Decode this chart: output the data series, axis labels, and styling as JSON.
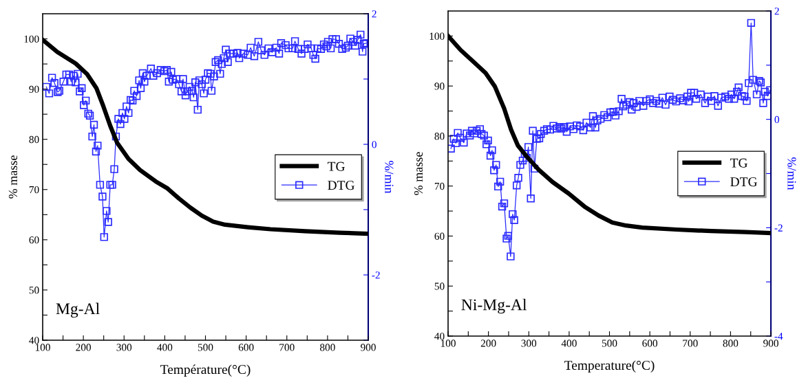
{
  "chart_data": [
    {
      "type": "line",
      "xlabel": "Température(°C)",
      "ylabel": "% masse",
      "y2label": "%/min",
      "annotations": [
        "Mg-Al"
      ],
      "legend": "right",
      "grid": false,
      "xlim": [
        100,
        900
      ],
      "xticks": [
        100,
        {
          "value": 150,
          "label": null
        },
        200,
        {
          "value": 250,
          "label": null
        },
        300,
        {
          "value": 350,
          "label": null
        },
        400,
        {
          "value": 450,
          "label": null
        },
        500,
        {
          "value": 550,
          "label": null
        },
        600,
        {
          "value": 650,
          "label": null
        },
        700,
        {
          "value": 750,
          "label": null
        },
        800,
        {
          "value": 850,
          "label": null
        },
        900
      ],
      "ylim": [
        40,
        105
      ],
      "yticks": [
        40,
        {
          "value": 45,
          "label": null
        },
        50,
        {
          "value": 55,
          "label": null
        },
        60,
        {
          "value": 65,
          "label": null
        },
        70,
        {
          "value": 75,
          "label": null
        },
        80,
        {
          "value": 85,
          "label": null
        },
        90,
        {
          "value": 95,
          "label": null
        },
        100
      ],
      "y2lim": [
        -3,
        2
      ],
      "y2ticks": [
        {
          "value": -3,
          "label": null
        },
        -2,
        {
          "value": -1,
          "label": null
        },
        0,
        {
          "value": 1,
          "label": null
        },
        2
      ],
      "series": [
        {
          "name": "TG",
          "color": "#000000",
          "marker": "none",
          "x": [
            100,
            136,
            181,
            209,
            232,
            249,
            266,
            283,
            311,
            339,
            378,
            407,
            435,
            463,
            491,
            519,
            548,
            604,
            660,
            745,
            829,
            897
          ],
          "values": [
            99.8,
            97.4,
            95.1,
            93.0,
            90.2,
            86.6,
            82.7,
            79.3,
            76.1,
            73.9,
            71.6,
            70.2,
            68.2,
            66.4,
            64.8,
            63.6,
            63.0,
            62.5,
            62.1,
            61.7,
            61.4,
            61.2
          ]
        },
        {
          "name": "DTG",
          "color": "#2b2bff",
          "marker": "square",
          "axis": "y2",
          "x": [
            109,
            116,
            123,
            129,
            137,
            141,
            151,
            158,
            165,
            170,
            176,
            181,
            186,
            191,
            196,
            201,
            206,
            212,
            216,
            222,
            226,
            231,
            235,
            241,
            247,
            251,
            257,
            261,
            266,
            271,
            276,
            280,
            286,
            291,
            296,
            301,
            306,
            311,
            316,
            321,
            325,
            331,
            337,
            341,
            346,
            350,
            356,
            366,
            372,
            381,
            390,
            399,
            405,
            410,
            416,
            420,
            429,
            435,
            441,
            445,
            451,
            455,
            461,
            467,
            471,
            475,
            481,
            485,
            491,
            496,
            500,
            506,
            512,
            515,
            521,
            525,
            531,
            536,
            540,
            545,
            550,
            555,
            560,
            569,
            579,
            583,
            593,
            604,
            611,
            620,
            630,
            637,
            645,
            655,
            664,
            674,
            681,
            686,
            697,
            704,
            714,
            720,
            728,
            736,
            744,
            751,
            760,
            765,
            770,
            775,
            784,
            791,
            797,
            801,
            808,
            812,
            821,
            828,
            836,
            845,
            850,
            856,
            863,
            868,
            874,
            881,
            886,
            889,
            895
          ],
          "values": [
            0.88,
            0.78,
            1.02,
            0.94,
            0.8,
            0.82,
            0.96,
            1.07,
            1.07,
            0.96,
            1.05,
            0.95,
            1.08,
            0.81,
            0.86,
            0.6,
            0.67,
            0.47,
            0.44,
            0.12,
            0.3,
            -0.11,
            -0.02,
            -0.62,
            -0.8,
            -1.42,
            -1.02,
            -1.19,
            -0.62,
            -0.62,
            -0.38,
            0.12,
            0.39,
            0.31,
            0.48,
            0.39,
            0.58,
            0.48,
            0.68,
            0.67,
            0.82,
            0.74,
            0.98,
            0.86,
            1.09,
            0.96,
            1.05,
            1.16,
            1.05,
            1.09,
            1.14,
            1.12,
            1.14,
            0.96,
            1.11,
            0.99,
            1.0,
            0.92,
            0.81,
            1.0,
            0.75,
            0.81,
            0.88,
            0.82,
            0.72,
            0.95,
            0.53,
            0.98,
            0.92,
            0.78,
            0.99,
            1.09,
            1.08,
            0.82,
            1.04,
            1.26,
            1.29,
            1.08,
            1.23,
            1.32,
            1.45,
            1.26,
            1.39,
            1.39,
            1.4,
            1.32,
            1.39,
            1.37,
            1.48,
            1.35,
            1.57,
            1.44,
            1.37,
            1.47,
            1.41,
            1.48,
            1.39,
            1.55,
            1.52,
            1.47,
            1.47,
            1.58,
            1.46,
            1.39,
            1.46,
            1.53,
            1.47,
            1.37,
            1.31,
            1.47,
            1.46,
            1.53,
            1.5,
            1.57,
            1.47,
            1.61,
            1.61,
            1.54,
            1.46,
            1.48,
            1.51,
            1.62,
            1.57,
            1.51,
            1.6,
            1.68,
            1.42,
            1.54,
            1.55
          ]
        }
      ]
    },
    {
      "type": "line",
      "xlabel": "Temperature(°C)",
      "ylabel": "% masse",
      "y2label": "%/min",
      "annotations": [
        "Ni-Mg-Al"
      ],
      "legend": "right",
      "grid": false,
      "xlim": [
        100,
        900
      ],
      "xticks": [
        100,
        {
          "value": 150,
          "label": null
        },
        200,
        {
          "value": 250,
          "label": null
        },
        300,
        {
          "value": 350,
          "label": null
        },
        400,
        {
          "value": 450,
          "label": null
        },
        500,
        {
          "value": 550,
          "label": null
        },
        600,
        {
          "value": 650,
          "label": null
        },
        700,
        {
          "value": 750,
          "label": null
        },
        800,
        {
          "value": 850,
          "label": null
        },
        900
      ],
      "ylim": [
        40,
        105
      ],
      "yticks": [
        40,
        {
          "value": 45,
          "label": null
        },
        50,
        {
          "value": 55,
          "label": null
        },
        60,
        {
          "value": 65,
          "label": null
        },
        70,
        {
          "value": 75,
          "label": null
        },
        80,
        {
          "value": 85,
          "label": null
        },
        90,
        {
          "value": 95,
          "label": null
        },
        100
      ],
      "y2lim": [
        -4,
        2
      ],
      "y2ticks": [
        -4,
        {
          "value": -3,
          "label": null
        },
        -2,
        {
          "value": -1,
          "label": null
        },
        0,
        {
          "value": 1,
          "label": null
        },
        2
      ],
      "series": [
        {
          "name": "TG",
          "color": "#000000",
          "marker": "none",
          "x": [
            100,
            131,
            165,
            193,
            216,
            239,
            256,
            273,
            296,
            324,
            359,
            399,
            438,
            473,
            507,
            541,
            581,
            666,
            752,
            837,
            900
          ],
          "values": [
            100.0,
            97.2,
            94.7,
            92.6,
            89.9,
            85.5,
            81.3,
            78.1,
            75.8,
            73.3,
            70.8,
            68.5,
            65.9,
            64.1,
            62.7,
            62.1,
            61.7,
            61.3,
            61.0,
            60.8,
            60.6
          ]
        },
        {
          "name": "DTG",
          "color": "#2b2bff",
          "marker": "square",
          "axis": "y2",
          "x": [
            107,
            114,
            119,
            124,
            130,
            139,
            146,
            154,
            159,
            165,
            171,
            179,
            183,
            189,
            195,
            199,
            205,
            209,
            214,
            219,
            224,
            229,
            234,
            239,
            245,
            249,
            255,
            260,
            264,
            270,
            274,
            279,
            285,
            290,
            295,
            299,
            305,
            310,
            314,
            320,
            326,
            330,
            338,
            345,
            353,
            361,
            369,
            376,
            381,
            388,
            394,
            402,
            411,
            419,
            427,
            435,
            443,
            453,
            459,
            465,
            470,
            478,
            487,
            495,
            502,
            510,
            515,
            523,
            530,
            534,
            542,
            550,
            555,
            560,
            567,
            574,
            584,
            592,
            600,
            608,
            616,
            623,
            631,
            639,
            649,
            657,
            665,
            675,
            683,
            693,
            696,
            702,
            710,
            715,
            726,
            737,
            744,
            752,
            760,
            769,
            777,
            787,
            796,
            802,
            809,
            816,
            820,
            828,
            835,
            840,
            845,
            851,
            856,
            865,
            871,
            875,
            881,
            885,
            892,
            898
          ],
          "values": [
            -0.54,
            -0.36,
            -0.44,
            -0.25,
            -0.34,
            -0.43,
            -0.26,
            -0.3,
            -0.21,
            -0.26,
            -0.21,
            -0.18,
            -0.27,
            -0.3,
            -0.46,
            -0.39,
            -0.67,
            -0.57,
            -0.94,
            -0.84,
            -1.24,
            -1.15,
            -1.61,
            -1.55,
            -2.2,
            -2.15,
            -2.53,
            -1.75,
            -1.86,
            -1.22,
            -1.08,
            -0.84,
            -0.76,
            -0.64,
            -0.71,
            -0.51,
            -1.46,
            -0.21,
            -0.91,
            -0.36,
            -0.35,
            -0.27,
            -0.21,
            -0.18,
            -0.19,
            -0.12,
            -0.17,
            -0.14,
            -0.17,
            -0.14,
            -0.23,
            -0.13,
            -0.18,
            -0.11,
            -0.13,
            -0.2,
            -0.06,
            -0.15,
            0.06,
            -0.15,
            -0.02,
            0.01,
            0.08,
            0.04,
            0.13,
            0.14,
            0.07,
            0.15,
            0.38,
            0.24,
            0.27,
            0.32,
            0.18,
            0.3,
            0.23,
            0.34,
            0.25,
            0.34,
            0.37,
            0.3,
            0.34,
            0.29,
            0.4,
            0.27,
            0.42,
            0.36,
            0.33,
            0.39,
            0.35,
            0.42,
            0.33,
            0.49,
            0.49,
            0.38,
            0.46,
            0.3,
            0.42,
            0.34,
            0.43,
            0.25,
            0.4,
            0.42,
            0.38,
            0.46,
            0.38,
            0.51,
            0.59,
            0.43,
            0.42,
            0.34,
            0.67,
            1.78,
            0.73,
            0.46,
            0.71,
            0.68,
            0.3,
            0.51,
            0.43,
            0.54
          ]
        }
      ]
    }
  ]
}
